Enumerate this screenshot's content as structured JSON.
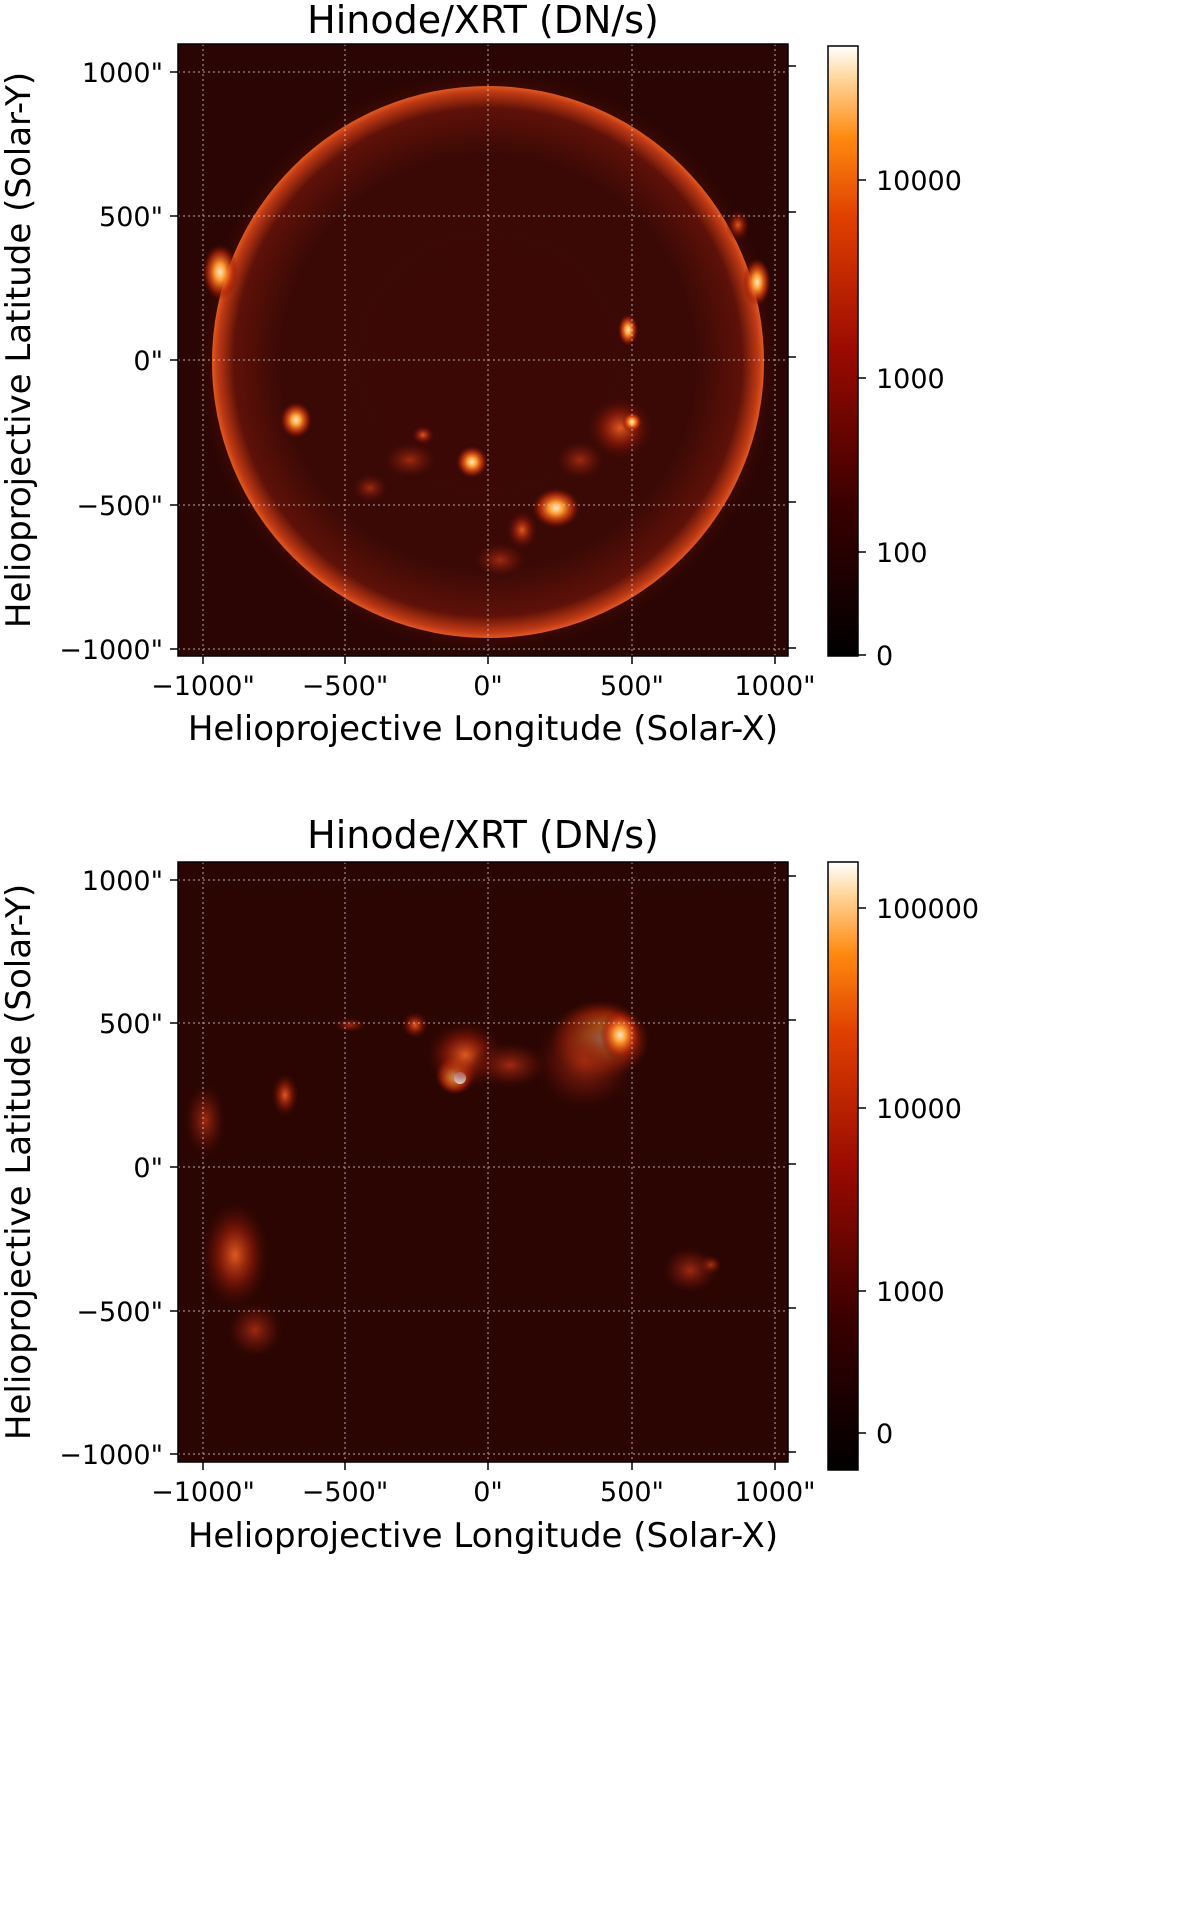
{
  "figure": {
    "panels": [
      {
        "title": "Hinode/XRT (DN/s)",
        "xlabel": "Helioprojective Longitude (Solar-X)",
        "ylabel": "Helioprojective Latitude (Solar-Y)",
        "x_ticks": [
          "−1000\"",
          "−500\"",
          "0\"",
          "500\"",
          "1000\""
        ],
        "y_ticks": [
          "1000\"",
          "500\"",
          "0\"",
          "−500\"",
          "−1000\""
        ],
        "x_tick_values": [
          -1000,
          -500,
          0,
          500,
          1000
        ],
        "y_tick_values": [
          1000,
          500,
          0,
          -500,
          -1000
        ],
        "colorbar": {
          "labels": [
            "10000",
            "1000",
            "100",
            "0"
          ],
          "values": [
            10000,
            1000,
            100,
            0
          ],
          "scale": "log"
        }
      },
      {
        "title": "Hinode/XRT (DN/s)",
        "xlabel": "Helioprojective Longitude (Solar-X)",
        "ylabel": "Helioprojective Latitude (Solar-Y)",
        "x_ticks": [
          "−1000\"",
          "−500\"",
          "0\"",
          "500\"",
          "1000\""
        ],
        "y_ticks": [
          "1000\"",
          "500\"",
          "0\"",
          "−500\"",
          "−1000\""
        ],
        "x_tick_values": [
          -1000,
          -500,
          0,
          500,
          1000
        ],
        "y_tick_values": [
          1000,
          500,
          0,
          -500,
          -1000
        ],
        "colorbar": {
          "labels": [
            "100000",
            "10000",
            "1000",
            "0"
          ],
          "values": [
            100000,
            10000,
            1000,
            0
          ],
          "scale": "log"
        }
      }
    ],
    "colormap": [
      "#000000",
      "#3a0000",
      "#8a0000",
      "#d42a00",
      "#ff7a00",
      "#ffc060",
      "#ffffff"
    ]
  }
}
